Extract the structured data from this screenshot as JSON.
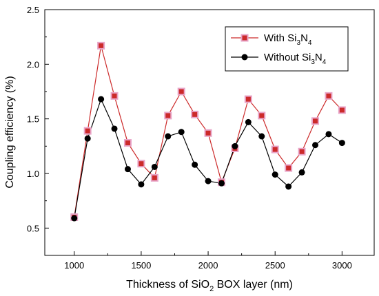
{
  "chart_data": {
    "type": "line",
    "xlabel": {
      "pre": "Thickness of SiO",
      "sub": "2",
      "post": " BOX layer (nm)"
    },
    "ylabel": "Coupling efficiency (%)",
    "xlim": [
      780,
      3240
    ],
    "ylim": [
      0.25,
      2.5
    ],
    "xticks": [
      1000,
      1500,
      2000,
      2500,
      3000
    ],
    "yticks": [
      0.5,
      1.0,
      1.5,
      2.0,
      2.5
    ],
    "xtick_labels": [
      "1000",
      "1500",
      "2000",
      "2500",
      "3000"
    ],
    "ytick_labels": [
      "0.5",
      "1.0",
      "1.5",
      "2.0",
      "2.5"
    ],
    "legend_position": "top-right",
    "x": [
      1000,
      1100,
      1200,
      1300,
      1400,
      1500,
      1600,
      1700,
      1800,
      1900,
      2000,
      2100,
      2200,
      2300,
      2400,
      2500,
      2600,
      2700,
      2800,
      2900,
      3000
    ],
    "series": [
      {
        "name_parts": [
          "With Si",
          "3",
          "N",
          "4",
          ""
        ],
        "color": "#cc2a2a",
        "marker": "square",
        "values": [
          0.6,
          1.39,
          2.17,
          1.71,
          1.28,
          1.09,
          0.96,
          1.53,
          1.75,
          1.54,
          1.37,
          0.92,
          1.23,
          1.68,
          1.53,
          1.22,
          1.05,
          1.2,
          1.48,
          1.71,
          1.58
        ]
      },
      {
        "name_parts": [
          "Without Si",
          "3",
          "N",
          "4",
          ""
        ],
        "color": "#000000",
        "marker": "circle",
        "values": [
          0.59,
          1.32,
          1.68,
          1.41,
          1.04,
          0.9,
          1.06,
          1.34,
          1.38,
          1.08,
          0.93,
          0.91,
          1.25,
          1.47,
          1.34,
          0.99,
          0.88,
          1.01,
          1.26,
          1.36,
          1.28
        ]
      }
    ]
  }
}
